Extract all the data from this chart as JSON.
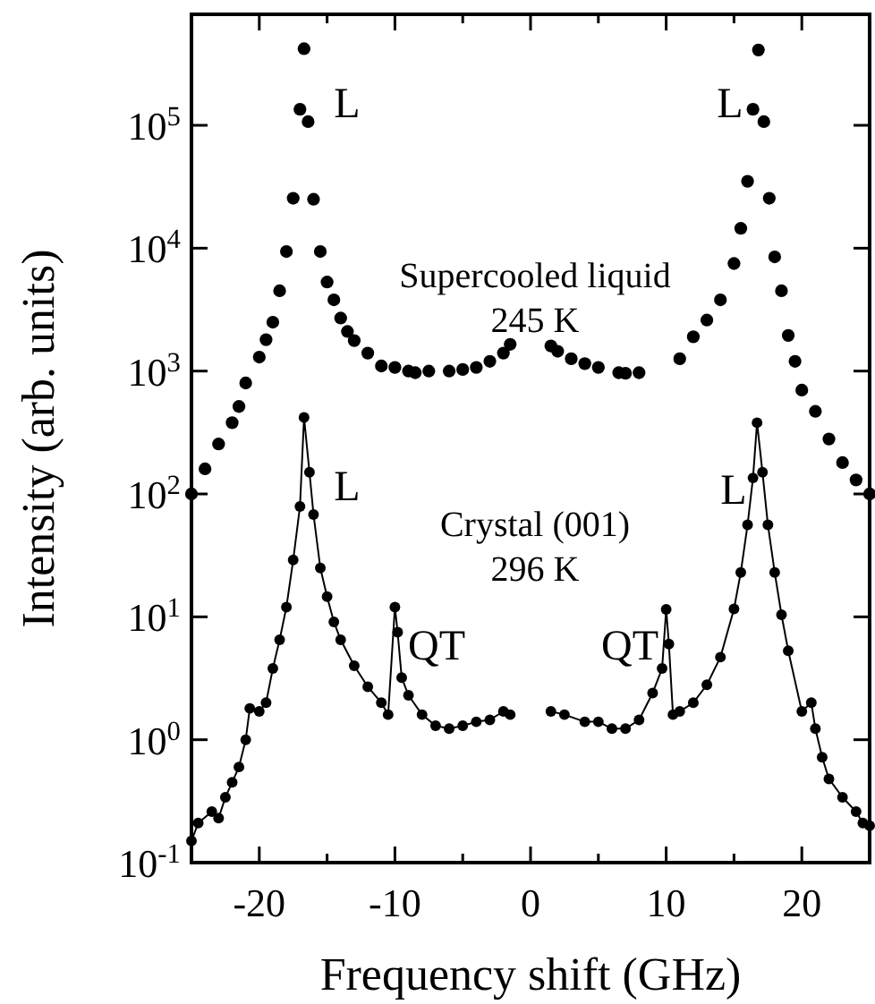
{
  "chart_data": {
    "type": "line",
    "xlabel": "Frequency shift (GHz)",
    "ylabel": "Intensity (arb. units)",
    "log": "y",
    "marker": "circle",
    "grid": false,
    "xlim": [
      -25,
      25
    ],
    "xticks": [
      -20,
      -10,
      0,
      10,
      20,
      {
        "value": -15,
        "label": null
      },
      {
        "value": -5,
        "label": null
      },
      {
        "value": 5,
        "label": null
      },
      {
        "value": 15,
        "label": null
      }
    ],
    "ylim": [
      0.1,
      800000
    ],
    "yticks": [
      {
        "value": 0.1,
        "label": "10$^{-1}$"
      },
      {
        "value": 1,
        "label": "10$^{0}$"
      },
      {
        "value": 10,
        "label": "10$^{1}$"
      },
      {
        "value": 100,
        "label": "10$^{2}$"
      },
      {
        "value": 1000,
        "label": "10$^{3}$"
      },
      {
        "value": 10000,
        "label": "10$^{4}$"
      },
      {
        "value": 100000,
        "label": "10$^{5}$"
      }
    ],
    "series": [
      {
        "type": "scatter",
        "color": "#000000",
        "x": [
          -25,
          -24,
          -23,
          -22,
          -21.5,
          -21,
          -20,
          -19.5,
          -19,
          -18.5,
          -18,
          -17.5,
          -17,
          -16.7,
          -16.4,
          -16,
          -15.5,
          -15,
          -14.5,
          -14,
          -13.5,
          -13,
          -12,
          -11,
          -10,
          -9,
          -8.5,
          -7.5,
          -7,
          -6,
          -5,
          -4,
          -3,
          -2,
          -1.5,
          0,
          1.5,
          2,
          3,
          4,
          5,
          5.8,
          6.5,
          7,
          8,
          9,
          11,
          12,
          13,
          14,
          15,
          15.5,
          16,
          16.4,
          16.8,
          17.2,
          17.6,
          18,
          18.5,
          19,
          19.5,
          20,
          21,
          22,
          23,
          24,
          25
        ],
        "values": [
          100,
          160,
          255,
          380,
          515,
          800,
          1300,
          1800,
          2500,
          4500,
          9400,
          25500,
          135000,
          420000,
          107000,
          25000,
          9400,
          5300,
          3800,
          2700,
          2100,
          1770,
          1400,
          1100,
          1070,
          1000,
          970,
          1000,
          null,
          1000,
          1030,
          1070,
          1200,
          1400,
          1650,
          null,
          1600,
          1450,
          1260,
          1150,
          1070,
          null,
          970,
          960,
          970,
          null,
          1260,
          1900,
          2600,
          3800,
          7500,
          14500,
          35000,
          135000,
          410000,
          107000,
          25500,
          8500,
          4500,
          1950,
          1200,
          700,
          470,
          280,
          180,
          130,
          100
        ]
      },
      {
        "type": "line",
        "color": "#000000",
        "x": [
          -25,
          -24.5,
          -23.5,
          -23,
          -22.5,
          -22,
          -21.5,
          -21,
          -20.7,
          -20,
          -19.5,
          -19,
          -18.5,
          -18,
          -17.5,
          -17,
          -16.7,
          -16.3,
          -16,
          -15.5,
          -15,
          -14.5,
          -14,
          -13,
          -12,
          -11,
          -10.5,
          -10,
          -9.8,
          -9.5,
          -9,
          -8,
          -7,
          -6,
          -5,
          -4,
          -3,
          -2,
          -1.5,
          0,
          1.5,
          2.5,
          4,
          5,
          6,
          7,
          8,
          9,
          9.7,
          10,
          10.2,
          10.5,
          11,
          12,
          13,
          14,
          15,
          15.5,
          16,
          16.4,
          16.7,
          17.1,
          17.5,
          18,
          18.5,
          19,
          20,
          20.7,
          21,
          21.5,
          22,
          23,
          24,
          24.5,
          25
        ],
        "values": [
          0.15,
          0.21,
          0.26,
          0.23,
          0.34,
          0.45,
          0.6,
          1.0,
          1.8,
          1.7,
          2.0,
          3.8,
          6.5,
          12,
          29,
          79,
          420,
          150,
          68,
          25,
          14.6,
          9.1,
          6.5,
          4.0,
          2.7,
          2.0,
          1.6,
          12,
          7.5,
          3.2,
          2.3,
          1.6,
          1.3,
          1.23,
          1.3,
          1.4,
          1.45,
          1.7,
          1.6,
          null,
          1.7,
          1.6,
          1.4,
          1.4,
          1.23,
          1.23,
          1.45,
          2.4,
          3.8,
          11.5,
          6,
          1.6,
          1.7,
          2.0,
          2.8,
          4.7,
          11.6,
          23,
          56,
          135,
          380,
          150,
          56,
          23,
          10.4,
          5.3,
          1.7,
          2.0,
          1.23,
          0.72,
          0.48,
          0.34,
          0.26,
          0.21,
          0.2
        ]
      }
    ],
    "annotations": [
      "L",
      "L",
      "Supercooled liquid\n245 K",
      "L",
      "L",
      "Crystal (001)\n296 K",
      "QT",
      "QT"
    ]
  }
}
